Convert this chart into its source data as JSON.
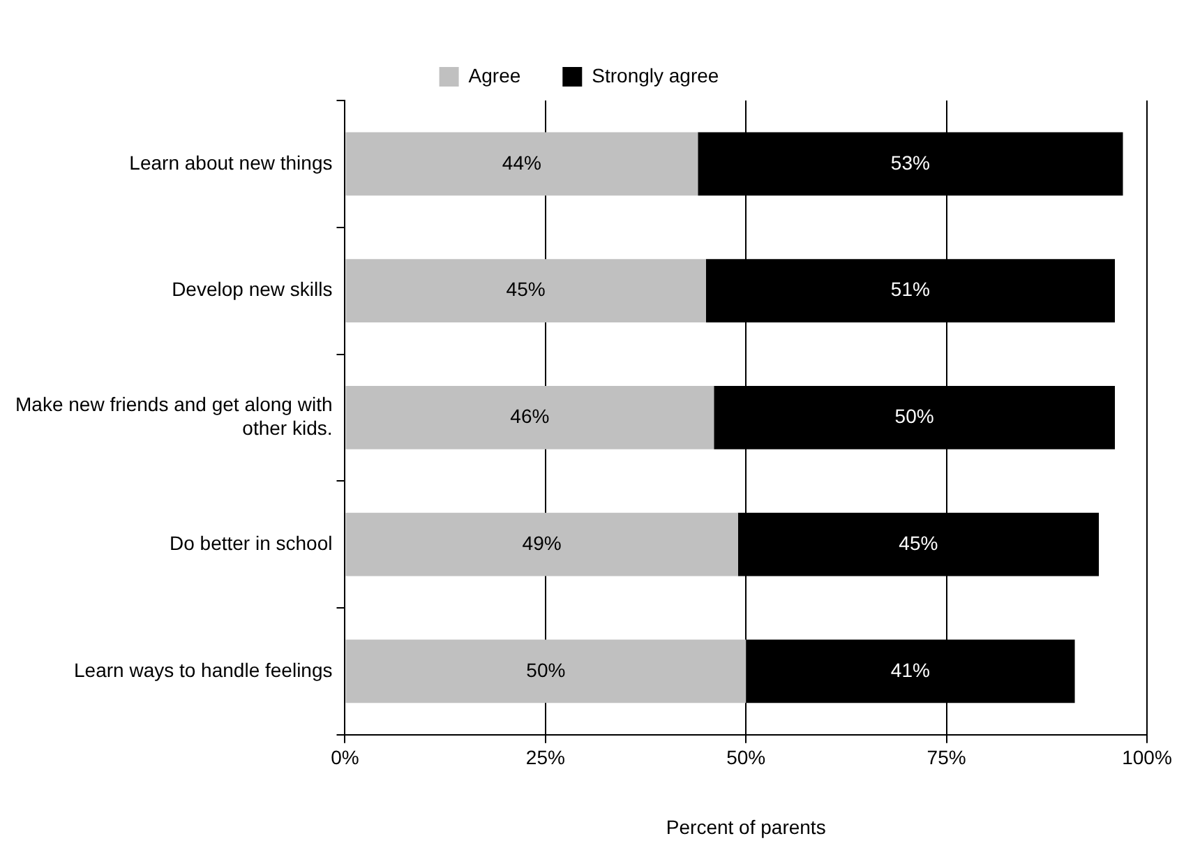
{
  "chart_data": {
    "type": "bar",
    "orientation": "horizontal",
    "stacked": true,
    "xlabel": "Percent of parents",
    "categories": [
      "Learn about new things",
      "Develop new skills",
      "Make new friends and get along with other kids.",
      "Do better in school",
      "Learn ways to handle feelings"
    ],
    "series": [
      {
        "name": "Agree",
        "color": "#c0c0c0",
        "values": [
          44,
          45,
          46,
          49,
          50
        ],
        "value_labels": [
          "44%",
          "45%",
          "46%",
          "49%",
          "50%"
        ]
      },
      {
        "name": "Strongly agree",
        "color": "#000000",
        "values": [
          53,
          51,
          50,
          45,
          41
        ],
        "value_labels": [
          "53%",
          "51%",
          "50%",
          "45%",
          "41%"
        ]
      }
    ],
    "xlim": [
      0,
      100
    ],
    "xticks": [
      {
        "value": 0,
        "label": "0%"
      },
      {
        "value": 25,
        "label": "25%"
      },
      {
        "value": 50,
        "label": "50%"
      },
      {
        "value": 75,
        "label": "75%"
      },
      {
        "value": 100,
        "label": "100%"
      }
    ],
    "grid": "x",
    "legend": "top"
  }
}
